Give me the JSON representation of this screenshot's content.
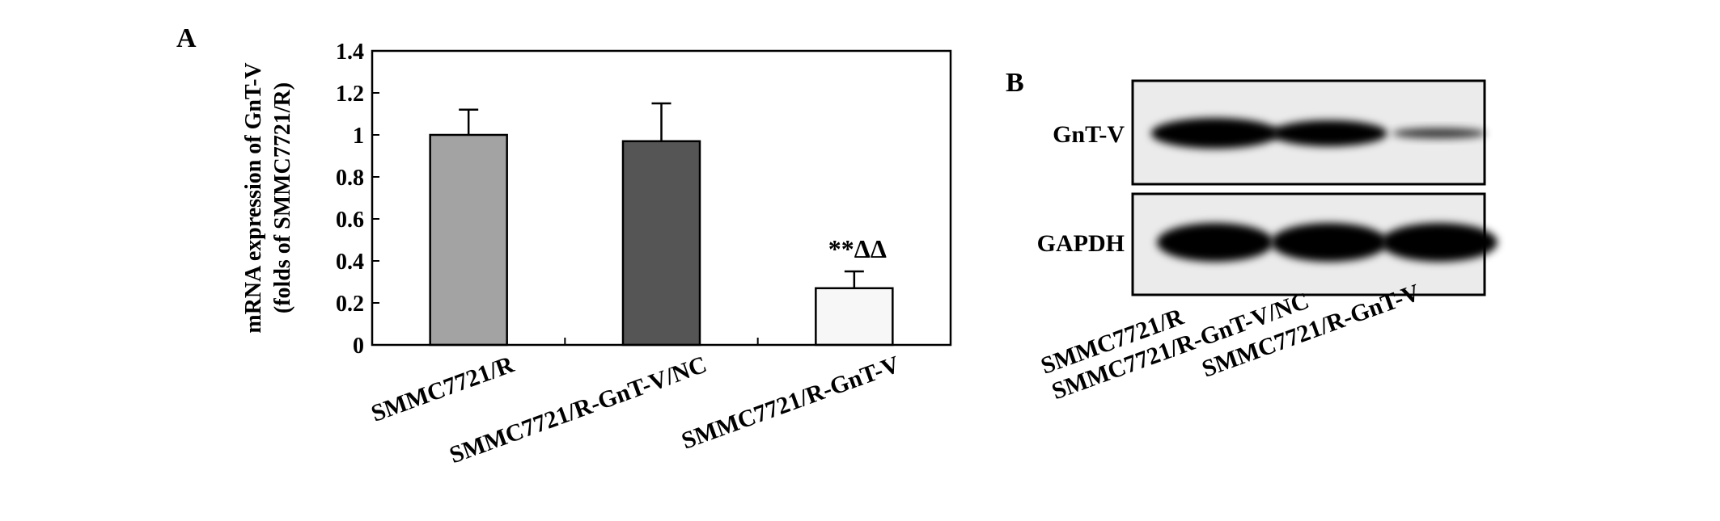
{
  "panels": {
    "a_label": "A",
    "b_label": "B"
  },
  "chart_data": {
    "type": "bar",
    "title": "",
    "ylabel_line1": "mRNA expression of GnT-V",
    "ylabel_line2": "(folds of SMMC7721/R)",
    "xlabel": "",
    "ylim": [
      0,
      1.4
    ],
    "yticks": [
      0,
      0.2,
      0.4,
      0.6,
      0.8,
      1,
      1.2,
      1.4
    ],
    "ytick_labels": [
      "0",
      "0.2",
      "0.4",
      "0.6",
      "0.8",
      "1",
      "1.2",
      "1.4"
    ],
    "categories": [
      "SMMC7721/R",
      "SMMC7721/R-GnT-V/NC",
      "SMMC7721/R-GnT-V"
    ],
    "values": [
      1.0,
      0.97,
      0.27
    ],
    "errors": [
      0.12,
      0.18,
      0.08
    ],
    "bar_colors": [
      "#a3a3a3",
      "#555555",
      "#f7f7f7"
    ],
    "annotations": [
      "",
      "",
      "**ΔΔ"
    ],
    "grid": false,
    "legend": "none"
  },
  "blot": {
    "rows": [
      {
        "label": "GnT-V",
        "intensity": [
          1.0,
          0.85,
          0.35
        ]
      },
      {
        "label": "GAPDH",
        "intensity": [
          1.0,
          1.0,
          1.0
        ]
      }
    ],
    "lanes": [
      "SMMC7721/R",
      "SMMC7721/R-GnT-V/NC",
      "SMMC7721/R-GnT-V"
    ]
  }
}
